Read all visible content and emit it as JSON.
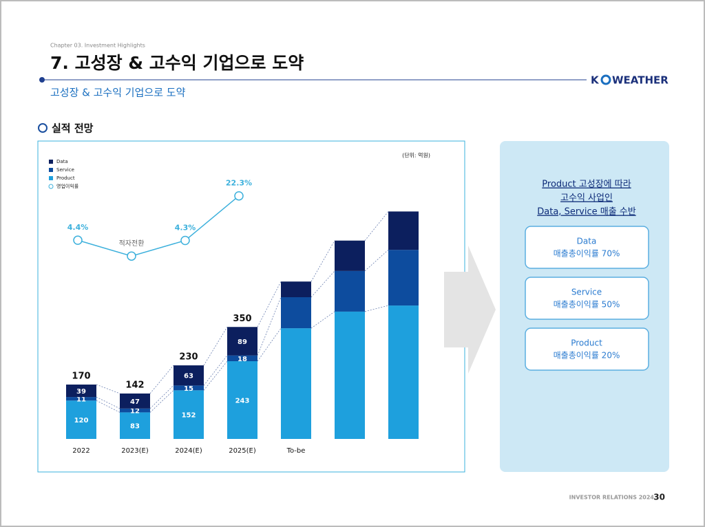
{
  "header": {
    "chapter": "Chapter 03. Investment Highlights",
    "title": "7. 고성장 & 고수익 기업으로 도약",
    "subtitle": "고성장 & 고수익 기업으로 도약",
    "logo_left": "K",
    "logo_right": "WEATHER",
    "section": "실적 전망"
  },
  "chart_data": {
    "type": "bar",
    "stacked": true,
    "unit": "(단위: 억원)",
    "categories": [
      "2022",
      "2023(E)",
      "2024(E)",
      "2025(E)",
      "To-be",
      null,
      null
    ],
    "series": [
      {
        "name": "Data",
        "color": "#0c1f5e",
        "values": [
          39,
          47,
          63,
          89,
          49,
          95,
          120
        ]
      },
      {
        "name": "Service",
        "color": "#0d4c9e",
        "values": [
          11,
          12,
          15,
          18,
          97,
          127,
          174
        ]
      },
      {
        "name": "Product",
        "color": "#1ea0dd",
        "values": [
          120,
          83,
          152,
          243,
          346,
          398,
          417
        ]
      }
    ],
    "totals": [
      170,
      142,
      230,
      350,
      null,
      null,
      null
    ],
    "line_series": {
      "name": "영업이익률",
      "color": "#3cb0dc",
      "values": [
        4.4,
        -2,
        4.3,
        22.3
      ],
      "value_labels": [
        "4.4%",
        "적자전환",
        "4.3%",
        "22.3%"
      ]
    }
  },
  "panel": {
    "heading": [
      "Product 고성장에 따라",
      "고수익 사업인",
      "Data, Service 매출 수반"
    ],
    "boxes": [
      [
        "Data",
        "매출총이익률 70%"
      ],
      [
        "Service",
        "매출총이익률 50%"
      ],
      [
        "Product",
        "매출총이익률 20%"
      ]
    ]
  },
  "footer": {
    "label": "INVESTOR RELATIONS 2024",
    "page": "30"
  }
}
